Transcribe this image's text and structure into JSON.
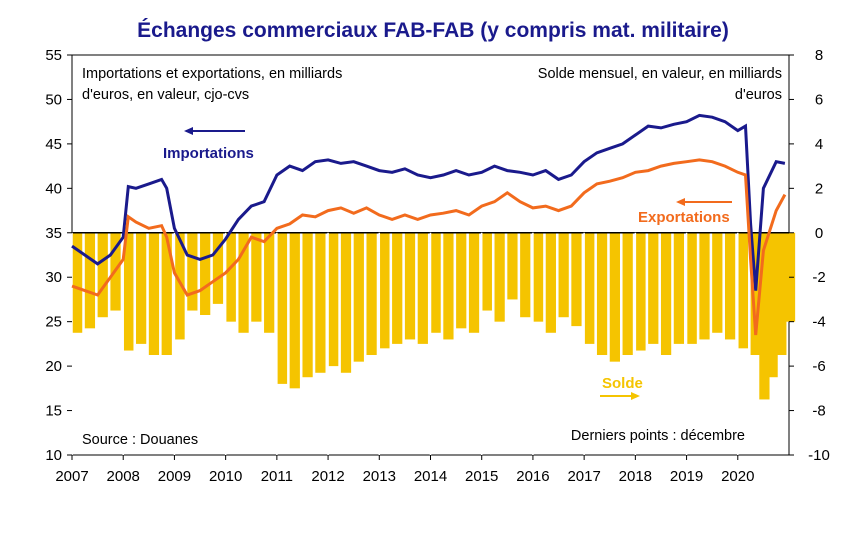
{
  "chart_data": {
    "type": "line",
    "title": "Échanges commerciaux FAB-FAB (y compris mat. militaire)",
    "left_axis_note": [
      "Importations et exportations, en milliards",
      "d'euros, en valeur,  cjo-cvs"
    ],
    "right_axis_note": [
      "Solde mensuel, en valeur, en milliards",
      "d'euros"
    ],
    "source": "Source : Douanes",
    "last_points": "Derniers points : décembre",
    "x_years": [
      "2007",
      "2008",
      "2009",
      "2010",
      "2011",
      "2012",
      "2013",
      "2014",
      "2015",
      "2016",
      "2017",
      "2018",
      "2019",
      "2020"
    ],
    "xlim": [
      2007.0,
      2021.0
    ],
    "ylim_left": [
      10,
      55
    ],
    "yticks_left": [
      "55",
      "50",
      "45",
      "40",
      "35",
      "30",
      "25",
      "20",
      "15",
      "10"
    ],
    "ylim_right": [
      -10,
      8
    ],
    "yticks_right": [
      "8",
      "6",
      "4",
      "2",
      "0",
      "-2",
      "-4",
      "-6",
      "-8",
      "-10"
    ],
    "series": [
      {
        "name": "Importations",
        "axis": "left",
        "color": "#1a1a8c",
        "x": [
          2007.0,
          2007.25,
          2007.5,
          2007.75,
          2008.0,
          2008.1,
          2008.25,
          2008.5,
          2008.75,
          2008.85,
          2009.0,
          2009.25,
          2009.5,
          2009.75,
          2010.0,
          2010.25,
          2010.5,
          2010.75,
          2011.0,
          2011.25,
          2011.5,
          2011.75,
          2012.0,
          2012.25,
          2012.5,
          2012.75,
          2013.0,
          2013.25,
          2013.5,
          2013.75,
          2014.0,
          2014.25,
          2014.5,
          2014.75,
          2015.0,
          2015.25,
          2015.5,
          2015.75,
          2016.0,
          2016.25,
          2016.5,
          2016.75,
          2017.0,
          2017.25,
          2017.5,
          2017.75,
          2018.0,
          2018.25,
          2018.5,
          2018.75,
          2019.0,
          2019.25,
          2019.5,
          2019.75,
          2020.0,
          2020.15,
          2020.25,
          2020.35,
          2020.5,
          2020.75,
          2020.92
        ],
        "values": [
          33.5,
          32.5,
          31.5,
          32.5,
          34.5,
          40.2,
          40.0,
          40.5,
          41.0,
          40.0,
          35.5,
          32.5,
          32.0,
          32.5,
          34.3,
          36.5,
          38.0,
          38.5,
          41.5,
          42.5,
          42.0,
          43.0,
          43.2,
          42.8,
          43.0,
          42.5,
          42.0,
          41.8,
          42.2,
          41.5,
          41.2,
          41.5,
          42.0,
          41.5,
          41.8,
          42.5,
          42.0,
          41.8,
          41.5,
          42.0,
          41.0,
          41.5,
          43.0,
          44.0,
          44.5,
          45.0,
          46.0,
          47.0,
          46.8,
          47.2,
          47.5,
          48.2,
          48.0,
          47.5,
          46.5,
          47.0,
          36.0,
          28.5,
          40.0,
          43.0,
          42.8
        ]
      },
      {
        "name": "Exportations",
        "axis": "left",
        "color": "#f26b1d",
        "x": [
          2007.0,
          2007.25,
          2007.5,
          2007.75,
          2008.0,
          2008.1,
          2008.25,
          2008.5,
          2008.75,
          2008.85,
          2009.0,
          2009.25,
          2009.5,
          2009.75,
          2010.0,
          2010.25,
          2010.5,
          2010.75,
          2011.0,
          2011.25,
          2011.5,
          2011.75,
          2012.0,
          2012.25,
          2012.5,
          2012.75,
          2013.0,
          2013.25,
          2013.5,
          2013.75,
          2014.0,
          2014.25,
          2014.5,
          2014.75,
          2015.0,
          2015.25,
          2015.5,
          2015.75,
          2016.0,
          2016.25,
          2016.5,
          2016.75,
          2017.0,
          2017.25,
          2017.5,
          2017.75,
          2018.0,
          2018.25,
          2018.5,
          2018.75,
          2019.0,
          2019.25,
          2019.5,
          2019.75,
          2020.0,
          2020.15,
          2020.25,
          2020.35,
          2020.5,
          2020.75,
          2020.92
        ],
        "values": [
          29.0,
          28.5,
          28.0,
          30.0,
          32.0,
          36.8,
          36.2,
          35.5,
          35.8,
          34.5,
          30.5,
          28.0,
          28.5,
          29.5,
          30.5,
          32.0,
          34.5,
          34.0,
          35.5,
          36.0,
          37.0,
          36.8,
          37.5,
          37.8,
          37.2,
          37.8,
          37.0,
          36.5,
          37.0,
          36.5,
          37.0,
          37.2,
          37.5,
          37.0,
          38.0,
          38.5,
          39.5,
          38.5,
          37.8,
          38.0,
          37.5,
          38.0,
          39.5,
          40.5,
          40.8,
          41.2,
          41.8,
          42.0,
          42.5,
          42.8,
          43.0,
          43.2,
          43.0,
          42.5,
          41.8,
          41.5,
          32.0,
          23.5,
          33.0,
          37.5,
          39.3
        ]
      },
      {
        "name": "Solde",
        "axis": "right",
        "type": "bar",
        "color": "#f5c400",
        "x": [
          2007.0,
          2007.25,
          2007.5,
          2007.75,
          2008.0,
          2008.25,
          2008.5,
          2008.75,
          2009.0,
          2009.25,
          2009.5,
          2009.75,
          2010.0,
          2010.25,
          2010.5,
          2010.75,
          2011.0,
          2011.25,
          2011.5,
          2011.75,
          2012.0,
          2012.25,
          2012.5,
          2012.75,
          2013.0,
          2013.25,
          2013.5,
          2013.75,
          2014.0,
          2014.25,
          2014.5,
          2014.75,
          2015.0,
          2015.25,
          2015.5,
          2015.75,
          2016.0,
          2016.25,
          2016.5,
          2016.75,
          2017.0,
          2017.25,
          2017.5,
          2017.75,
          2018.0,
          2018.25,
          2018.5,
          2018.75,
          2019.0,
          2019.25,
          2019.5,
          2019.75,
          2020.0,
          2020.25,
          2020.42,
          2020.58,
          2020.75,
          2020.92
        ],
        "values": [
          -4.5,
          -4.3,
          -3.8,
          -3.5,
          -5.3,
          -5.0,
          -5.5,
          -5.5,
          -4.8,
          -3.5,
          -3.7,
          -3.2,
          -4.0,
          -4.5,
          -4.0,
          -4.5,
          -6.8,
          -7.0,
          -6.5,
          -6.3,
          -6.0,
          -6.3,
          -5.8,
          -5.5,
          -5.2,
          -5.0,
          -4.8,
          -5.0,
          -4.5,
          -4.8,
          -4.3,
          -4.5,
          -3.5,
          -4.0,
          -3.0,
          -3.8,
          -4.0,
          -4.5,
          -3.8,
          -4.2,
          -5.0,
          -5.5,
          -5.8,
          -5.5,
          -5.3,
          -5.0,
          -5.5,
          -5.0,
          -5.0,
          -4.8,
          -4.5,
          -4.8,
          -5.2,
          -5.5,
          -7.5,
          -6.5,
          -5.5,
          -4.0
        ]
      }
    ],
    "labels": {
      "importations": "Importations",
      "exportations": "Exportations",
      "solde": "Solde"
    },
    "grid": false,
    "legend": "inline-labels"
  }
}
